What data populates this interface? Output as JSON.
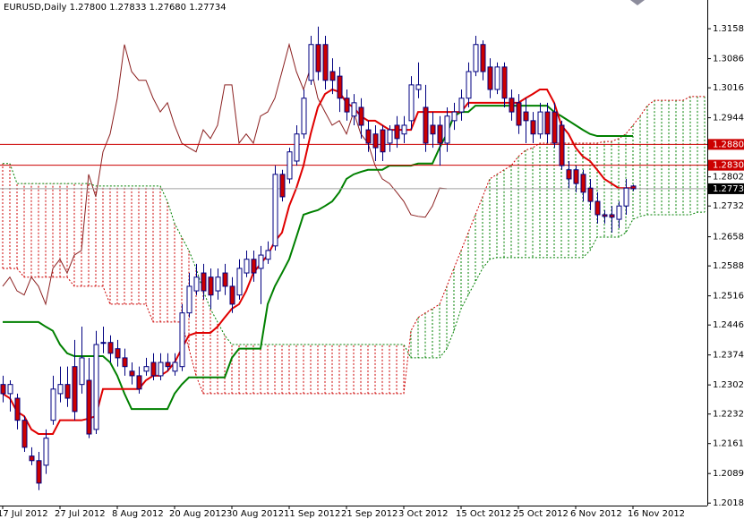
{
  "chart_data": {
    "type": "candlestick",
    "title": "EURUSD,Daily  1.27800 1.27833 1.27680 1.27734",
    "categories": [
      "17 Jul 2012",
      null,
      null,
      null,
      null,
      null,
      null,
      null,
      "27 Jul 2012",
      null,
      null,
      null,
      null,
      null,
      null,
      null,
      "8 Aug 2012",
      null,
      null,
      null,
      null,
      null,
      null,
      null,
      "20 Aug 2012",
      null,
      null,
      null,
      null,
      null,
      null,
      null,
      "30 Aug 2012",
      null,
      null,
      null,
      null,
      null,
      null,
      null,
      "11 Sep 2012",
      null,
      null,
      null,
      null,
      null,
      null,
      null,
      "21 Sep 2012",
      null,
      null,
      null,
      null,
      null,
      null,
      null,
      "3 Oct 2012",
      null,
      null,
      null,
      null,
      null,
      null,
      null,
      "15 Oct 2012",
      null,
      null,
      null,
      null,
      null,
      null,
      null,
      "25 Oct 2012",
      null,
      null,
      null,
      null,
      null,
      null,
      null,
      "6 Nov 2012",
      null,
      null,
      null,
      null,
      null,
      null,
      null,
      "16 Nov 2012",
      null,
      null,
      null,
      null,
      null,
      null,
      null,
      null,
      null,
      null
    ],
    "open": [
      1.2303,
      1.2281,
      1.227,
      1.2217,
      1.2131,
      1.212,
      1.2109,
      1.2217,
      1.2281,
      1.2303,
      1.2346,
      1.2303,
      1.2313,
      1.2195,
      1.2404,
      1.2404,
      1.2389,
      1.2367,
      1.2335,
      1.2324,
      1.2335,
      1.2356,
      1.2324,
      1.2356,
      1.2335,
      1.2346,
      1.2475,
      1.2528,
      1.2571,
      1.2561,
      1.2528,
      1.2571,
      1.2539,
      1.2518,
      1.2571,
      1.2604,
      1.2582,
      1.2604,
      1.2636,
      1.2808,
      1.2797,
      1.284,
      1.2905,
      1.3034,
      1.312,
      1.312,
      1.3055,
      1.3044,
      1.2991,
      1.2948,
      1.2969,
      1.2915,
      1.2905,
      1.2915,
      1.2883,
      1.2926,
      1.2905,
      1.2937,
      1.3012,
      1.2969,
      1.2926,
      1.2926,
      1.2883,
      1.2937,
      1.2958,
      1.2991,
      1.3055,
      1.312,
      1.3066,
      1.3012,
      1.3066,
      1.2991,
      1.298,
      1.2958,
      1.2937,
      1.2905,
      1.2958,
      1.2958,
      1.2926,
      1.2819,
      1.2819,
      1.2808,
      1.2775,
      1.2743,
      1.2711,
      1.2711,
      1.27,
      1.2732,
      1.278,
      null,
      null,
      null,
      null,
      null,
      null,
      null,
      null,
      null,
      null
    ],
    "high": [
      1.2324,
      1.2313,
      1.2281,
      1.2227,
      1.2152,
      1.2141,
      1.2195,
      1.2324,
      1.2346,
      1.2346,
      1.241,
      1.2442,
      1.2367,
      1.2432,
      1.2442,
      1.2421,
      1.241,
      1.2389,
      1.2356,
      1.2346,
      1.2367,
      1.2378,
      1.2378,
      1.2378,
      1.2378,
      1.2496,
      1.2571,
      1.2593,
      1.2593,
      1.2582,
      1.2582,
      1.2593,
      1.2561,
      1.2604,
      1.2625,
      1.2625,
      1.2636,
      1.2647,
      1.2829,
      1.2819,
      1.2872,
      1.2926,
      1.3012,
      1.3141,
      1.3163,
      1.3141,
      1.3087,
      1.3066,
      1.3012,
      1.3001,
      1.2991,
      1.2937,
      1.2926,
      1.2926,
      1.2926,
      1.2948,
      1.2948,
      1.3044,
      1.3077,
      1.3023,
      1.2958,
      1.2948,
      1.2969,
      1.298,
      1.3012,
      1.3077,
      1.3141,
      1.313,
      1.3087,
      1.3077,
      1.3077,
      1.3012,
      1.3001,
      1.2991,
      1.2958,
      1.298,
      1.298,
      1.298,
      1.2937,
      1.284,
      1.2829,
      1.2819,
      1.2797,
      1.2765,
      1.2722,
      1.2732,
      1.2743,
      1.2797,
      1.27833,
      null,
      null,
      null,
      null,
      null,
      null,
      null,
      null,
      null,
      null
    ],
    "low": [
      1.226,
      1.2238,
      1.2195,
      1.2141,
      1.2109,
      1.2049,
      1.2088,
      1.2206,
      1.226,
      1.2249,
      1.2217,
      1.2281,
      1.2174,
      1.2184,
      1.2378,
      1.2356,
      1.2346,
      1.2324,
      1.2303,
      1.2281,
      1.2324,
      1.2313,
      1.2313,
      1.2335,
      1.2324,
      1.2335,
      1.2464,
      1.2518,
      1.2507,
      1.2485,
      1.2507,
      1.2518,
      1.2475,
      1.2507,
      1.2561,
      1.255,
      1.2496,
      1.2593,
      1.2625,
      1.2743,
      1.2786,
      1.2829,
      1.2894,
      1.3023,
      1.3034,
      1.3012,
      1.3001,
      1.2958,
      1.2937,
      1.2926,
      1.2894,
      1.2862,
      1.284,
      1.284,
      1.2862,
      1.2872,
      1.2883,
      1.2915,
      1.2991,
      1.2862,
      1.2872,
      1.2829,
      1.2862,
      1.2915,
      1.2937,
      1.2969,
      1.3044,
      1.3034,
      1.2991,
      1.3001,
      1.2969,
      1.2937,
      1.2905,
      1.2883,
      1.2883,
      1.2894,
      1.2883,
      1.2872,
      1.2819,
      1.2775,
      1.2765,
      1.2743,
      1.2722,
      1.269,
      1.269,
      1.2668,
      1.2679,
      1.2711,
      1.2768,
      null,
      null,
      null,
      null,
      null,
      null,
      null,
      null,
      null,
      null
    ],
    "close": [
      1.2281,
      1.2303,
      1.2217,
      1.2152,
      1.212,
      1.2066,
      1.2174,
      1.2292,
      1.2303,
      1.227,
      1.2238,
      1.2367,
      1.2184,
      1.2399,
      1.2404,
      1.2378,
      1.2367,
      1.2346,
      1.2324,
      1.2292,
      1.2346,
      1.2324,
      1.2356,
      1.2346,
      1.2356,
      1.2475,
      1.2539,
      1.2561,
      1.2528,
      1.2518,
      1.2561,
      1.2539,
      1.2496,
      1.2582,
      1.2604,
      1.2571,
      1.2614,
      1.2625,
      1.2808,
      1.2754,
      1.2862,
      1.2905,
      1.2991,
      1.312,
      1.3055,
      1.3034,
      1.3034,
      1.2991,
      1.2958,
      1.298,
      1.2926,
      1.2883,
      1.2872,
      1.2862,
      1.2915,
      1.2894,
      1.2926,
      1.3023,
      1.3023,
      1.2883,
      1.2905,
      1.2883,
      1.2948,
      1.2958,
      1.2991,
      1.3055,
      1.312,
      1.3055,
      1.3012,
      1.3066,
      1.2991,
      1.2958,
      1.2926,
      1.2937,
      1.2905,
      1.2958,
      1.2905,
      1.2883,
      1.2829,
      1.2797,
      1.2786,
      1.2765,
      1.2743,
      1.2711,
      1.2707,
      1.2705,
      1.2732,
      1.2775,
      1.27734,
      null,
      null,
      null,
      null,
      null,
      null,
      null,
      null,
      null,
      null
    ],
    "up_color": "#ffffff",
    "down_color": "#cc0000",
    "wick_color": "#000080",
    "ylim": [
      1.2012,
      1.3227
    ],
    "yticks": [
      {
        "value": 1.3158,
        "label": "1.31580"
      },
      {
        "value": 1.3086,
        "label": "1.30860"
      },
      {
        "value": 1.3016,
        "label": "1.30160"
      },
      {
        "value": 1.2944,
        "label": "1.29440"
      },
      {
        "value": 1.2802,
        "label": "1.28020"
      },
      {
        "value": 1.2732,
        "label": "1.27320"
      },
      {
        "value": 1.2658,
        "label": "1.26580"
      },
      {
        "value": 1.2588,
        "label": "1.25880"
      },
      {
        "value": 1.2516,
        "label": "1.25160"
      },
      {
        "value": 1.2446,
        "label": "1.24460"
      },
      {
        "value": 1.2374,
        "label": "1.23740"
      },
      {
        "value": 1.2302,
        "label": "1.23020"
      },
      {
        "value": 1.2232,
        "label": "1.22320"
      },
      {
        "value": 1.2161,
        "label": "1.21610"
      },
      {
        "value": 1.2089,
        "label": "1.20890"
      },
      {
        "value": 1.2018,
        "label": "1.20180"
      }
    ],
    "levels": [
      {
        "value": 1.288,
        "label": "1.28800",
        "color": "#cc0000",
        "line_color": "#cc0000"
      },
      {
        "value": 1.283,
        "label": "1.28300",
        "color": "#cc0000",
        "line_color": "#cc0000"
      },
      {
        "value": 1.27734,
        "label": "1.27734",
        "color": "#000000",
        "line_color": "#a0a0a0"
      }
    ],
    "ichimoku": {
      "bull_color": "#008000",
      "bear_color": "#cc0000",
      "tenkan": {
        "color": "#e00000",
        "width": 2,
        "values": [
          1.2281,
          1.227,
          1.2238,
          1.2227,
          1.2195,
          1.2184,
          1.2184,
          1.2184,
          1.2217,
          1.2217,
          1.2217,
          1.2217,
          1.2221,
          1.2227,
          1.2292,
          1.2292,
          1.2292,
          1.2292,
          1.2292,
          1.2292,
          1.2313,
          1.2324,
          1.2324,
          1.2335,
          1.2356,
          1.2389,
          1.2421,
          1.2427,
          1.2427,
          1.2427,
          1.2442,
          1.2464,
          1.2485,
          1.2496,
          1.2528,
          1.2571,
          1.2593,
          1.2614,
          1.2647,
          1.2668,
          1.2732,
          1.2775,
          1.2829,
          1.2905,
          1.2969,
          1.3001,
          1.3012,
          1.3006,
          1.298,
          1.2969,
          1.2948,
          1.2937,
          1.2937,
          1.2926,
          1.2915,
          1.2915,
          1.2915,
          1.2915,
          1.2958,
          1.2958,
          1.2958,
          1.2958,
          1.2958,
          1.2958,
          1.2958,
          1.298,
          1.298,
          1.298,
          1.298,
          1.298,
          1.298,
          1.298,
          1.298,
          1.2991,
          1.3001,
          1.3012,
          1.3012,
          1.298,
          1.2926,
          1.2905,
          1.2872,
          1.2851,
          1.284,
          1.2819,
          1.2797,
          1.2786,
          1.2775,
          1.2775,
          1.2775,
          null,
          null,
          null,
          null,
          null,
          null,
          null,
          null,
          null,
          null
        ]
      },
      "kijun": {
        "color": "#008000",
        "width": 2,
        "values": [
          1.2453,
          1.2453,
          1.2453,
          1.2453,
          1.2453,
          1.2453,
          1.2442,
          1.2432,
          1.2399,
          1.2378,
          1.2371,
          1.2371,
          1.2371,
          1.2371,
          1.2371,
          1.2356,
          1.2324,
          1.2281,
          1.2244,
          1.2244,
          1.2244,
          1.2244,
          1.2244,
          1.2244,
          1.2281,
          1.2303,
          1.232,
          1.232,
          1.232,
          1.232,
          1.232,
          1.232,
          1.2367,
          1.2389,
          1.2389,
          1.2389,
          1.2389,
          1.2496,
          1.2539,
          1.2571,
          1.2604,
          1.2657,
          1.2711,
          1.2717,
          1.2722,
          1.2732,
          1.2743,
          1.2765,
          1.2797,
          1.2808,
          1.2814,
          1.2819,
          1.2819,
          1.2819,
          1.2829,
          1.2829,
          1.2829,
          1.2829,
          1.2834,
          1.2834,
          1.2834,
          1.2872,
          1.2905,
          1.2948,
          1.2958,
          1.2958,
          1.2973,
          1.2973,
          1.2973,
          1.2973,
          1.2973,
          1.2973,
          1.2973,
          1.2973,
          1.2973,
          1.2973,
          1.2973,
          1.2958,
          1.2948,
          1.2937,
          1.2926,
          1.2915,
          1.2905,
          1.29,
          1.29,
          1.29,
          1.29,
          1.29,
          1.29,
          null,
          null,
          null,
          null,
          null,
          null,
          null,
          null,
          null,
          null
        ]
      },
      "chikou": {
        "color": "#8b2020",
        "width": 1,
        "values": [
          1.2539,
          1.2561,
          1.2528,
          1.2518,
          1.2561,
          1.2539,
          1.2496,
          1.2582,
          1.2604,
          1.2571,
          1.2614,
          1.2625,
          1.2808,
          1.2754,
          1.2862,
          1.2905,
          1.2991,
          1.312,
          1.3055,
          1.3034,
          1.3034,
          1.2991,
          1.2958,
          1.298,
          1.2926,
          1.2883,
          1.2872,
          1.2862,
          1.2915,
          1.2894,
          1.2926,
          1.3023,
          1.3023,
          1.2883,
          1.2905,
          1.2883,
          1.2948,
          1.2958,
          1.2991,
          1.3055,
          1.312,
          1.3055,
          1.3012,
          1.3066,
          1.2991,
          1.2958,
          1.2926,
          1.2937,
          1.2905,
          1.2958,
          1.2905,
          1.2883,
          1.2829,
          1.2797,
          1.2786,
          1.2765,
          1.2743,
          1.2711,
          1.2707,
          1.2705,
          1.2732,
          1.2775,
          1.27734,
          null,
          null,
          null,
          null,
          null,
          null,
          null,
          null,
          null,
          null,
          null,
          null,
          null,
          null,
          null,
          null,
          null,
          null,
          null,
          null,
          null,
          null,
          null,
          null,
          null,
          null,
          null,
          null,
          null,
          null,
          null,
          null,
          null,
          null
        ]
      },
      "span_a": {
        "color": "#cc0000",
        "width": 1,
        "values": [
          1.2582,
          1.2582,
          1.2582,
          1.2561,
          1.2561,
          1.2561,
          1.2561,
          1.2561,
          1.2561,
          1.2561,
          1.2539,
          1.2539,
          1.2539,
          1.2539,
          1.2539,
          1.2496,
          1.2496,
          1.2496,
          1.2496,
          1.2496,
          1.2496,
          1.2453,
          1.2453,
          1.2453,
          1.2453,
          1.2453,
          1.2389,
          1.2324,
          1.2281,
          1.2281,
          1.2281,
          1.2281,
          1.2281,
          1.2281,
          1.2281,
          1.2281,
          1.2281,
          1.2281,
          1.2281,
          1.2281,
          1.2281,
          1.2281,
          1.2281,
          1.2281,
          1.2281,
          1.2281,
          1.2281,
          1.2281,
          1.2281,
          1.2281,
          1.2281,
          1.2281,
          1.2281,
          1.2281,
          1.2281,
          1.2281,
          1.2281,
          1.2432,
          1.2464,
          1.2475,
          1.2485,
          1.2496,
          1.2539,
          1.2582,
          1.2625,
          1.2668,
          1.2711,
          1.2754,
          1.2797,
          1.2808,
          1.2819,
          1.2829,
          1.2851,
          1.2866,
          1.2872,
          1.2883,
          1.2883,
          1.2883,
          1.2883,
          1.2883,
          1.2883,
          1.2883,
          1.2883,
          1.2883,
          1.2887,
          1.2887,
          1.2894,
          1.2905,
          1.2926,
          1.2948,
          1.2973,
          1.2986,
          1.2986,
          1.2986,
          1.2986,
          1.2986,
          1.2995,
          1.2995,
          1.2995
        ]
      },
      "span_b": {
        "color": "#008000",
        "width": 1,
        "values": [
          1.2834,
          1.2834,
          1.2786,
          1.2786,
          1.2786,
          1.2786,
          1.2786,
          1.2786,
          1.2786,
          1.2786,
          1.2786,
          1.2786,
          1.2786,
          1.278,
          1.278,
          1.278,
          1.278,
          1.278,
          1.278,
          1.278,
          1.278,
          1.278,
          1.278,
          1.2743,
          1.269,
          1.2657,
          1.2625,
          1.2582,
          1.2528,
          1.2485,
          1.2453,
          1.2421,
          1.2399,
          1.2399,
          1.2399,
          1.2399,
          1.2399,
          1.2399,
          1.2399,
          1.2399,
          1.2399,
          1.2399,
          1.2399,
          1.2399,
          1.2399,
          1.2399,
          1.2399,
          1.2399,
          1.2399,
          1.2399,
          1.2399,
          1.2399,
          1.2399,
          1.2399,
          1.2399,
          1.2399,
          1.2399,
          1.2367,
          1.2367,
          1.2367,
          1.2367,
          1.2367,
          1.2389,
          1.2432,
          1.2485,
          1.2518,
          1.255,
          1.2582,
          1.2604,
          1.2608,
          1.2608,
          1.2608,
          1.2608,
          1.2608,
          1.2608,
          1.2608,
          1.2608,
          1.2608,
          1.2608,
          1.2608,
          1.2608,
          1.2608,
          1.2625,
          1.2657,
          1.2657,
          1.2657,
          1.2657,
          1.2668,
          1.27,
          1.2707,
          1.2711,
          1.2711,
          1.2711,
          1.2711,
          1.2711,
          1.2711,
          1.2711,
          1.2717,
          1.2717
        ]
      }
    }
  }
}
